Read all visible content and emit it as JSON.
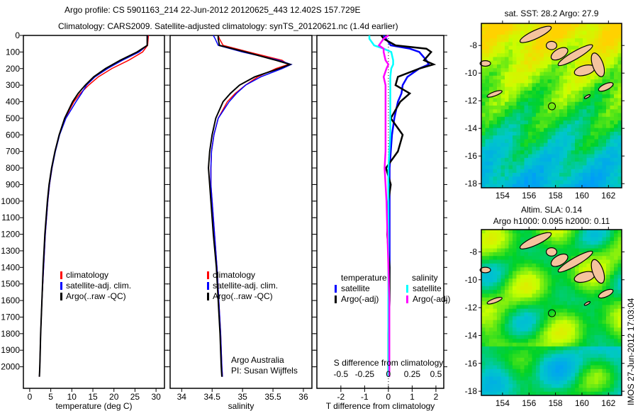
{
  "title_line1": "Argo profile: CS 5901163_214 22-Jun-2012 20120625_443 12.402S 157.729E",
  "title_line2": "Climatology: CARS2009. Satellite-adjusted climatology: synTS_20120621.nc (1.4d earlier)",
  "footer_stamp": "IMOS 27-Jun-2012 17:03:04",
  "colors": {
    "climatology": "#ff0000",
    "satellite": "#0000ff",
    "argo": "#000000",
    "sal_satellite": "#00ffff",
    "sal_argo": "#ff00ff"
  },
  "chart_data": [
    {
      "type": "line",
      "name": "temperature-profile",
      "xlabel": "temperature (deg C)",
      "ylabel": "",
      "xlim": [
        -1.5,
        32
      ],
      "ylim": [
        2130,
        0
      ],
      "xticks": [
        0,
        5,
        10,
        15,
        20,
        25,
        30
      ],
      "yticks": [
        0,
        100,
        200,
        300,
        400,
        500,
        600,
        700,
        800,
        900,
        1000,
        1100,
        1200,
        1300,
        1400,
        1500,
        1600,
        1700,
        1800,
        1900,
        2000
      ],
      "depth": [
        0,
        60,
        100,
        150,
        200,
        250,
        300,
        350,
        400,
        500,
        600,
        700,
        800,
        900,
        1000,
        1200,
        1400,
        1600,
        1800,
        2000,
        2060
      ],
      "legend": {
        "position": "lower-middle",
        "entries": [
          "climatology",
          "satellite-adj. clim.",
          "Argo(..raw -QC)"
        ]
      },
      "series": [
        {
          "name": "climatology",
          "color": "#ff0000",
          "values": [
            28.2,
            28.0,
            26.8,
            23.5,
            19.5,
            16.3,
            14.0,
            12.0,
            10.5,
            8.4,
            7.0,
            6.0,
            5.3,
            4.7,
            4.3,
            3.7,
            3.3,
            2.9,
            2.6,
            2.4,
            2.3
          ]
        },
        {
          "name": "satellite-adj. clim.",
          "color": "#0000ff",
          "values": [
            28.0,
            27.9,
            26.0,
            22.0,
            18.5,
            15.5,
            13.5,
            12.3,
            11.0,
            8.6,
            7.1,
            6.1,
            5.3,
            4.7,
            4.3,
            3.7,
            3.3,
            2.9,
            2.6,
            2.4,
            2.3
          ]
        },
        {
          "name": "Argo(..raw -QC)",
          "color": "#000000",
          "values": [
            27.9,
            27.9,
            25.5,
            21.5,
            18.0,
            15.2,
            13.2,
            11.5,
            10.2,
            8.3,
            7.0,
            6.0,
            5.2,
            4.6,
            4.2,
            3.6,
            3.2,
            2.9,
            2.6,
            2.4,
            2.3
          ]
        }
      ]
    },
    {
      "type": "line",
      "name": "salinity-profile",
      "xlabel": "salinity",
      "xlim": [
        33.81,
        36.14
      ],
      "ylim": [
        2130,
        0
      ],
      "xticks": [
        34,
        34.5,
        35,
        35.5,
        36
      ],
      "xticklabels": [
        "34",
        "34.5",
        "35",
        "35.5",
        "36"
      ],
      "depth": [
        0,
        20,
        60,
        100,
        150,
        175,
        200,
        250,
        300,
        350,
        400,
        500,
        600,
        700,
        800,
        900,
        1000,
        1200,
        1400,
        1600,
        1800,
        2000,
        2060
      ],
      "legend": {
        "position": "lower-middle",
        "entries": [
          "climatology",
          "satellite-adj. clim.",
          "Argo(..raw -QC)"
        ]
      },
      "annotation": [
        "Argo Australia",
        "PI: Susan Wijffels"
      ],
      "series": [
        {
          "name": "climatology",
          "color": "#ff0000",
          "values": [
            34.6,
            34.62,
            34.68,
            35.1,
            35.65,
            35.75,
            35.55,
            35.25,
            35.05,
            34.88,
            34.75,
            34.6,
            34.53,
            34.49,
            34.48,
            34.48,
            34.5,
            34.54,
            34.58,
            34.61,
            34.64,
            34.66,
            34.67
          ]
        },
        {
          "name": "satellite-adj. clim.",
          "color": "#0000ff",
          "values": [
            34.52,
            34.55,
            34.6,
            35.0,
            35.6,
            35.8,
            35.65,
            35.3,
            35.05,
            34.9,
            34.78,
            34.6,
            34.53,
            34.49,
            34.48,
            34.48,
            34.5,
            34.54,
            34.58,
            34.61,
            34.64,
            34.66,
            34.67
          ]
        },
        {
          "name": "Argo(..raw -QC)",
          "color": "#000000",
          "values": [
            34.6,
            34.6,
            34.62,
            35.05,
            35.55,
            35.78,
            35.6,
            35.2,
            34.95,
            34.8,
            34.68,
            34.56,
            34.5,
            34.46,
            34.44,
            34.46,
            34.48,
            34.52,
            34.57,
            34.6,
            34.63,
            34.65,
            34.66
          ]
        }
      ]
    },
    {
      "type": "line",
      "name": "difference-profile",
      "xlabel": "T difference from climatology",
      "xlabel2": "S difference from climatology",
      "xlim": [
        -3.01,
        2.33
      ],
      "ylim": [
        2130,
        0
      ],
      "xticks": [
        -2,
        -1,
        0,
        1,
        2
      ],
      "xticklabels": [
        "-2",
        "-1",
        "0",
        "1",
        "2"
      ],
      "s_xticks": [
        -0.5,
        -0.25,
        0,
        0.25,
        0.5
      ],
      "s_xticklabels": [
        "-0.5",
        "-0.25",
        "0",
        "0.25",
        "0.5"
      ],
      "depth": [
        0,
        20,
        60,
        80,
        100,
        150,
        175,
        200,
        250,
        300,
        350,
        400,
        500,
        600,
        700,
        800,
        900,
        1000,
        1200,
        1400,
        1600,
        1800,
        2000,
        2060
      ],
      "legend": {
        "position": "lower-middle",
        "headers": [
          "temperature",
          "salinity"
        ],
        "entries": [
          "satellite",
          "Argo(-adj)",
          "satellite",
          "Argo(-adj)"
        ]
      },
      "series": [
        {
          "name": "T satellite",
          "color": "#0000ff",
          "values": [
            -0.2,
            -0.1,
            0.1,
            0.9,
            1.3,
            1.6,
            1.7,
            1.3,
            0.8,
            0.6,
            0.55,
            0.4,
            0.25,
            0.15,
            0.1,
            0.05,
            0.05,
            0.05,
            0.05,
            0.05,
            0.03,
            0.02,
            0.02,
            0.02
          ]
        },
        {
          "name": "T Argo(-adj)",
          "color": "#000000",
          "values": [
            -0.3,
            -0.2,
            0.3,
            1.6,
            1.8,
            1.5,
            1.9,
            1.3,
            0.4,
            0.3,
            0.9,
            0.5,
            0.1,
            0.6,
            0.4,
            -0.1,
            0.1,
            0.0,
            -0.05,
            0.05,
            0.05,
            0.0,
            0.0,
            0.0
          ]
        },
        {
          "name": "S satellite",
          "color": "#00ffff",
          "values": [
            -0.2,
            -0.2,
            -0.15,
            -0.05,
            0.03,
            0.05,
            0.05,
            0.03,
            0.02,
            0.02,
            0.02,
            0.02,
            0.02,
            0.02,
            0.01,
            0.0,
            0.0,
            0.0,
            0.0,
            0.0,
            0.0,
            0.0,
            0.0,
            0.0
          ]
        },
        {
          "name": "S Argo(-adj)",
          "color": "#ff00ff",
          "values": [
            0.0,
            -0.05,
            -0.1,
            -0.05,
            -0.05,
            -0.03,
            0.0,
            -0.02,
            -0.05,
            -0.03,
            -0.03,
            -0.03,
            -0.03,
            -0.03,
            -0.03,
            -0.04,
            -0.03,
            -0.02,
            -0.01,
            0.0,
            0.01,
            0.01,
            0.01,
            0.01
          ]
        }
      ]
    },
    {
      "type": "heatmap",
      "name": "sst-map",
      "title": "sat. SST: 28.2 Argo: 27.9",
      "xlim": [
        152.4,
        163.0
      ],
      "ylim": [
        -18.3,
        -6.4
      ],
      "xticks": [
        154,
        156,
        158,
        160,
        162
      ],
      "yticks": [
        -8,
        -10,
        -12,
        -14,
        -16,
        -18
      ],
      "yticklabels": [
        "-8",
        "-10",
        "-12",
        "-14",
        "-16",
        "-18"
      ],
      "profile_location": [
        157.729,
        -12.402
      ]
    },
    {
      "type": "heatmap",
      "name": "sla-map",
      "title": "Altim. SLA: 0.14",
      "subtitle": "Argo h1000: 0.095 h2000: 0.11",
      "xlim": [
        152.4,
        163.0
      ],
      "ylim": [
        -18.3,
        -6.4
      ],
      "xticks": [
        154,
        156,
        158,
        160,
        162
      ],
      "yticks": [
        -8,
        -10,
        -12,
        -14,
        -16,
        -18
      ],
      "yticklabels": [
        "-8",
        "-10",
        "-12",
        "-14",
        "-16",
        "-18"
      ],
      "profile_location": [
        157.729,
        -12.402
      ]
    }
  ]
}
